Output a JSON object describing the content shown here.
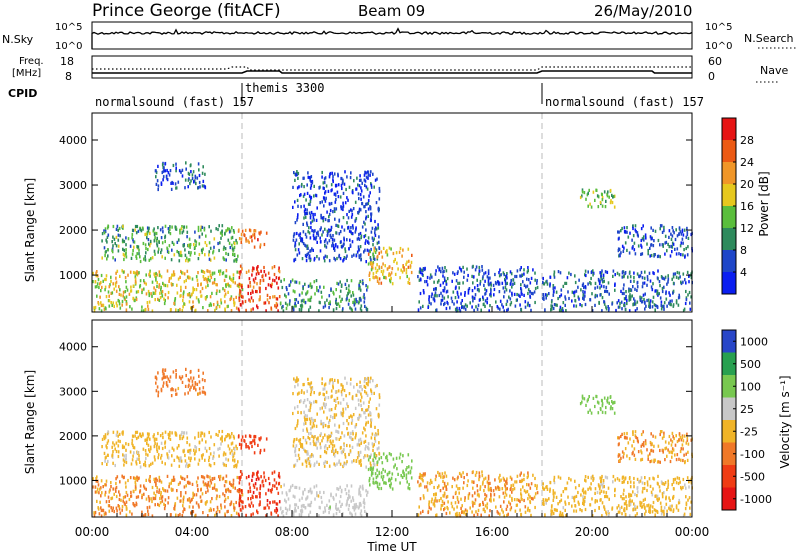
{
  "header": {
    "station": "Prince George (fitACF)",
    "beam": "Beam 09",
    "date": "26/May/2010"
  },
  "sky_panel": {
    "label": "N.Sky",
    "right_label": "N.Search",
    "ticks_left": [
      "10^5",
      "10^0"
    ],
    "ticks_right": [
      "10^5",
      "10^0"
    ]
  },
  "freq_panel": {
    "label_top": "Freq.",
    "label_bottom": "[MHz]",
    "right_label": "Nave",
    "ticks_left": [
      "18",
      "8"
    ],
    "ticks_right": [
      "60",
      "0"
    ]
  },
  "cpid": {
    "label": "CPID",
    "segments": [
      {
        "name": "normalsound (fast)",
        "id": "157",
        "start": 0
      },
      {
        "name": "themis",
        "id": "3300",
        "start": 6
      },
      {
        "name": "normalsound (fast)",
        "id": "157",
        "start": 18
      }
    ]
  },
  "power_panel": {
    "ylabel": "Slant Range [km]",
    "yticks": [
      "1000",
      "2000",
      "3000",
      "4000"
    ],
    "colorbar_label": "Power [dB]",
    "colorbar_ticks": [
      "28",
      "24",
      "20",
      "16",
      "12",
      "8",
      "4"
    ],
    "colors": [
      "#0a1ef0",
      "#1e46c8",
      "#2e8a5c",
      "#5abe3c",
      "#e6c81e",
      "#f09628",
      "#ec5a14",
      "#e61414"
    ]
  },
  "velocity_panel": {
    "ylabel": "Slant Range [km]",
    "yticks": [
      "1000",
      "2000",
      "3000",
      "4000"
    ],
    "colorbar_label": "Velocity [m s⁻¹]",
    "colorbar_ticks": [
      "1000",
      "500",
      "100",
      "25",
      "-25",
      "-100",
      "-500",
      "-1000"
    ],
    "colors": [
      "#2846c8",
      "#28a050",
      "#78c850",
      "#c8c8c8",
      "#f0b428",
      "#f07828",
      "#f03c14",
      "#e61414"
    ]
  },
  "x_axis": {
    "ticks": [
      "00:00",
      "04:00",
      "08:00",
      "12:00",
      "16:00",
      "20:00",
      "00:00"
    ],
    "label": "Time UT"
  },
  "chart_data": {
    "type": "heatmap",
    "x_range_hours": [
      0,
      24
    ],
    "y_range_km": [
      180,
      4600
    ],
    "dashed_markers_hours": [
      6,
      18
    ],
    "scatter_regions": [
      {
        "t0": 0.0,
        "t1": 6.0,
        "r0": 200,
        "r1": 1100,
        "power_db": 18,
        "velocity": -30
      },
      {
        "t0": 0.3,
        "t1": 5.8,
        "r0": 1300,
        "r1": 2100,
        "power_db": 12,
        "velocity": 10
      },
      {
        "t0": 2.5,
        "t1": 4.5,
        "r0": 2900,
        "r1": 3500,
        "power_db": 6,
        "velocity": -60
      },
      {
        "t0": 5.8,
        "t1": 7.5,
        "r0": 200,
        "r1": 1200,
        "power_db": 27,
        "velocity": -400
      },
      {
        "t0": 5.8,
        "t1": 7.0,
        "r0": 1600,
        "r1": 2000,
        "power_db": 24,
        "velocity": -200
      },
      {
        "t0": 7.5,
        "t1": 11.0,
        "r0": 200,
        "r1": 900,
        "power_db": 10,
        "velocity": 60
      },
      {
        "t0": 8.0,
        "t1": 11.5,
        "r0": 1300,
        "r1": 3300,
        "power_db": 5,
        "velocity": 20
      },
      {
        "t0": 11.0,
        "t1": 12.8,
        "r0": 800,
        "r1": 1600,
        "power_db": 20,
        "velocity": 300
      },
      {
        "t0": 13.0,
        "t1": 17.8,
        "r0": 200,
        "r1": 1200,
        "power_db": 6,
        "velocity": -20
      },
      {
        "t0": 18.0,
        "t1": 24.0,
        "r0": 200,
        "r1": 1100,
        "power_db": 7,
        "velocity": 10
      },
      {
        "t0": 19.5,
        "t1": 21.0,
        "r0": 2500,
        "r1": 2900,
        "power_db": 13,
        "velocity": 200
      },
      {
        "t0": 21.0,
        "t1": 24.0,
        "r0": 1400,
        "r1": 2100,
        "power_db": 6,
        "velocity": -20
      }
    ]
  }
}
